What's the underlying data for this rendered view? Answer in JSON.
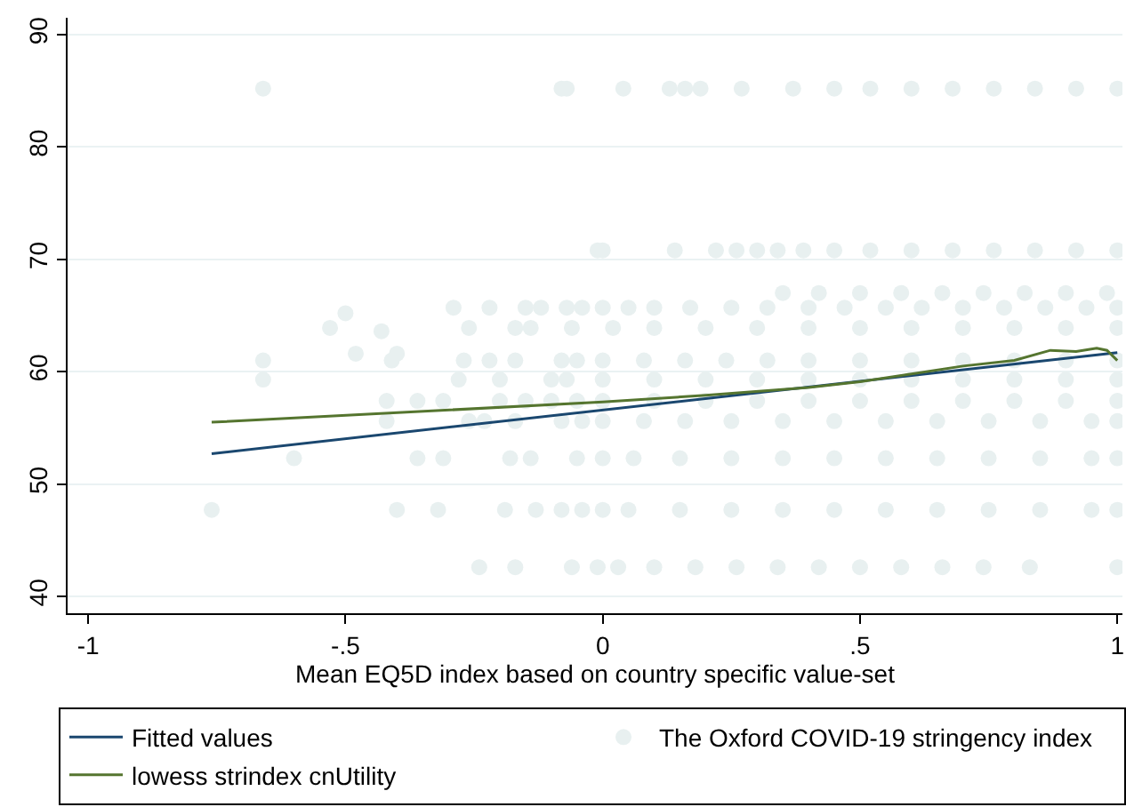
{
  "chart_data": {
    "type": "scatter",
    "xlabel": "Mean EQ5D index based on country specific value-set",
    "xlim": [
      -1.04,
      1.01
    ],
    "xticks": [
      {
        "value": -1,
        "label": "-1"
      },
      {
        "value": -0.5,
        "label": "-.5"
      },
      0,
      {
        "value": 0.5,
        "label": ".5"
      },
      1
    ],
    "ylim": [
      38.5,
      91.5
    ],
    "yticks": [
      40,
      50,
      60,
      70,
      80,
      90
    ],
    "grid": "y",
    "legend": "bottom",
    "series": [
      {
        "name": "The Oxford COVID-19 stringency index",
        "marker": "circle",
        "color": "#e8f0f0",
        "x": [
          -0.66,
          -0.08,
          -0.07,
          0.04,
          0.13,
          0.16,
          0.19,
          0.27,
          0.37,
          0.45,
          0.52,
          0.6,
          0.68,
          0.76,
          0.84,
          0.92,
          1.0,
          -0.01,
          0.0,
          0.14,
          0.22,
          0.26,
          0.3,
          0.34,
          0.39,
          0.45,
          0.52,
          0.6,
          0.68,
          0.76,
          0.84,
          0.92,
          1.0,
          0.35,
          0.42,
          0.5,
          0.58,
          0.66,
          0.74,
          0.82,
          0.9,
          0.98,
          -0.29,
          -0.22,
          -0.15,
          -0.12,
          -0.07,
          -0.04,
          0.0,
          0.05,
          0.1,
          0.17,
          0.25,
          0.32,
          0.4,
          0.47,
          0.55,
          0.62,
          0.7,
          0.78,
          0.86,
          0.94,
          1.0,
          -0.5,
          -0.43,
          -0.48,
          -0.4,
          -0.41,
          -0.53,
          -0.26,
          -0.17,
          -0.14,
          -0.06,
          0.02,
          0.1,
          0.2,
          0.3,
          0.4,
          0.5,
          0.6,
          0.7,
          0.8,
          0.9,
          1.0,
          -0.66,
          -0.27,
          -0.22,
          -0.17,
          -0.08,
          -0.05,
          0.0,
          0.08,
          0.16,
          0.24,
          0.32,
          0.4,
          0.5,
          0.6,
          0.7,
          0.8,
          0.9,
          1.0,
          -0.66,
          -0.28,
          -0.2,
          -0.1,
          -0.07,
          0.0,
          0.1,
          0.2,
          0.3,
          0.4,
          0.5,
          0.6,
          0.7,
          0.8,
          0.9,
          1.0,
          -0.42,
          -0.36,
          -0.31,
          -0.2,
          -0.15,
          -0.1,
          -0.05,
          0.0,
          0.1,
          0.2,
          0.3,
          0.4,
          0.5,
          0.6,
          0.7,
          0.8,
          0.9,
          1.0,
          -0.42,
          -0.26,
          -0.23,
          -0.17,
          -0.08,
          -0.04,
          0.0,
          0.08,
          0.16,
          0.25,
          0.35,
          0.45,
          0.55,
          0.65,
          0.75,
          0.85,
          0.95,
          1.0,
          -0.6,
          -0.36,
          -0.31,
          -0.18,
          -0.14,
          -0.05,
          0.0,
          0.06,
          0.15,
          0.25,
          0.35,
          0.45,
          0.55,
          0.65,
          0.75,
          0.85,
          0.95,
          1.0,
          -0.76,
          -0.4,
          -0.32,
          -0.19,
          -0.13,
          -0.08,
          -0.04,
          0.0,
          0.05,
          0.15,
          0.25,
          0.35,
          0.45,
          0.55,
          0.65,
          0.75,
          0.85,
          0.95,
          1.0,
          -0.24,
          -0.17,
          -0.06,
          -0.01,
          0.03,
          0.1,
          0.18,
          0.26,
          0.34,
          0.42,
          0.5,
          0.58,
          0.66,
          0.74,
          0.83,
          1.0
        ],
        "values": [
          85.2,
          85.2,
          85.2,
          85.2,
          85.2,
          85.2,
          85.2,
          85.2,
          85.2,
          85.2,
          85.2,
          85.2,
          85.2,
          85.2,
          85.2,
          85.2,
          85.2,
          70.8,
          70.8,
          70.8,
          70.8,
          70.8,
          70.8,
          70.8,
          70.8,
          70.8,
          70.8,
          70.8,
          70.8,
          70.8,
          70.8,
          70.8,
          70.8,
          67,
          67,
          67,
          67,
          67,
          67,
          67,
          67,
          67,
          65.7,
          65.7,
          65.7,
          65.7,
          65.7,
          65.7,
          65.7,
          65.7,
          65.7,
          65.7,
          65.7,
          65.7,
          65.7,
          65.7,
          65.7,
          65.7,
          65.7,
          65.7,
          65.7,
          65.7,
          65.7,
          65.2,
          63.6,
          61.6,
          61.6,
          61,
          63.9,
          63.9,
          63.9,
          63.9,
          63.9,
          63.9,
          63.9,
          63.9,
          63.9,
          63.9,
          63.9,
          63.9,
          63.9,
          63.9,
          63.9,
          63.9,
          61,
          61,
          61,
          61,
          61,
          61,
          61,
          61,
          61,
          61,
          61,
          61,
          61,
          61,
          61,
          61,
          61,
          61,
          59.3,
          59.3,
          59.3,
          59.3,
          59.3,
          59.3,
          59.3,
          59.3,
          59.3,
          59.3,
          59.3,
          59.3,
          59.3,
          59.3,
          59.3,
          59.3,
          57.4,
          57.4,
          57.4,
          57.4,
          57.4,
          57.4,
          57.4,
          57.4,
          57.4,
          57.4,
          57.4,
          57.4,
          57.4,
          57.4,
          57.4,
          57.4,
          57.4,
          57.4,
          55.6,
          55.6,
          55.6,
          55.6,
          55.6,
          55.6,
          55.6,
          55.6,
          55.6,
          55.6,
          55.6,
          55.6,
          55.6,
          55.6,
          55.6,
          55.6,
          55.6,
          55.6,
          52.3,
          52.3,
          52.3,
          52.3,
          52.3,
          52.3,
          52.3,
          52.3,
          52.3,
          52.3,
          52.3,
          52.3,
          52.3,
          52.3,
          52.3,
          52.3,
          52.3,
          52.3,
          47.7,
          47.7,
          47.7,
          47.7,
          47.7,
          47.7,
          47.7,
          47.7,
          47.7,
          47.7,
          47.7,
          47.7,
          47.7,
          47.7,
          47.7,
          47.7,
          47.7,
          47.7,
          47.7,
          42.6,
          42.6,
          42.6,
          42.6,
          42.6,
          42.6,
          42.6,
          42.6,
          42.6,
          42.6,
          42.6,
          42.6,
          42.6,
          42.6,
          42.6,
          42.6
        ]
      },
      {
        "name": "Fitted values",
        "type": "line",
        "color": "#1a476f",
        "x": [
          -0.76,
          1.0
        ],
        "values": [
          52.7,
          61.7
        ]
      },
      {
        "name": "lowess strindex cnUtility",
        "type": "line",
        "color": "#55752f",
        "x": [
          -0.76,
          0,
          0.2,
          0.4,
          0.5,
          0.6,
          0.7,
          0.8,
          0.87,
          0.92,
          0.96,
          0.98,
          1.0
        ],
        "values": [
          55.5,
          57.3,
          57.9,
          58.6,
          59.1,
          59.8,
          60.5,
          61.0,
          61.9,
          61.8,
          62.1,
          61.9,
          61.0
        ]
      }
    ]
  }
}
